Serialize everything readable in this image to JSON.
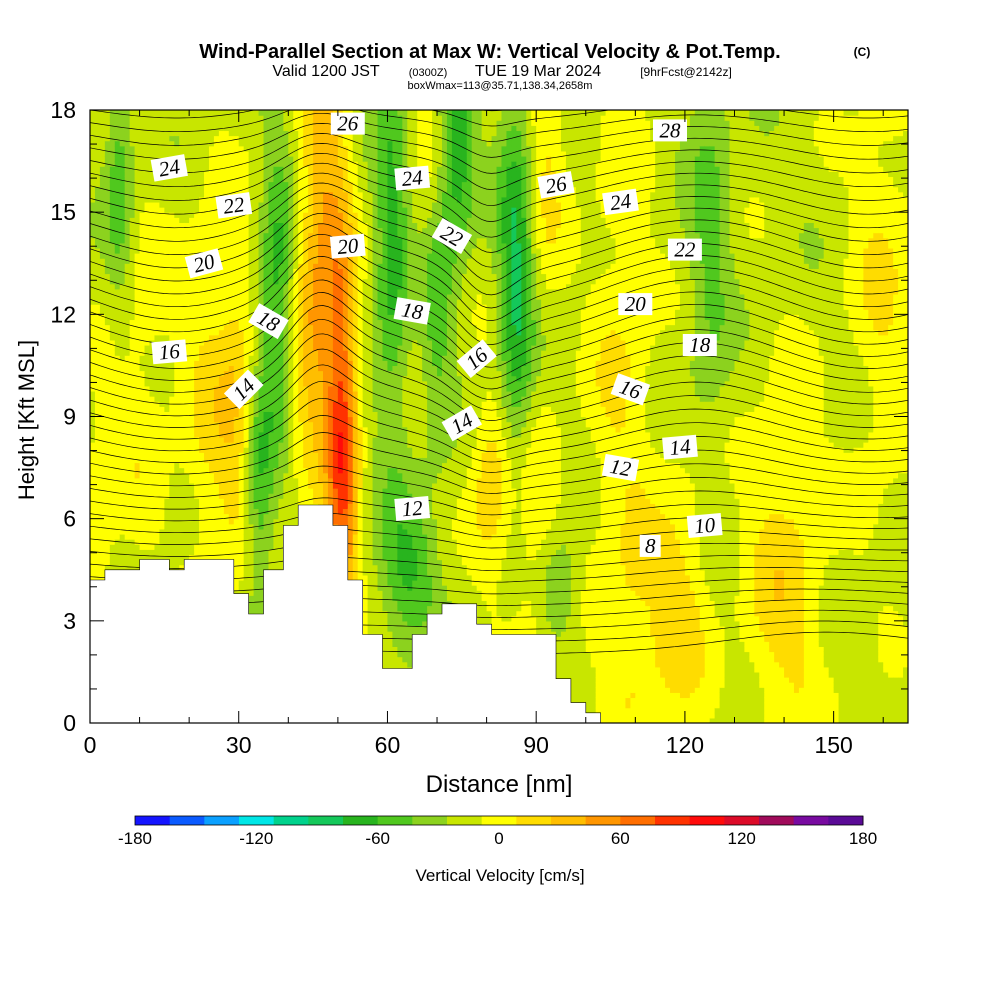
{
  "header": {
    "title": "Wind-Parallel Section at Max W: Vertical Velocity & Pot.Temp.",
    "title_tag": "(C)",
    "valid_prefix": "Valid 1200 JST",
    "valid_utc": "(0300Z)",
    "valid_date": "TUE 19 Mar 2024",
    "forecast_tag": "[9hrFcst@2142z]",
    "box_info": "boxWmax=113@35.71,138.34,2658m"
  },
  "chart_data": {
    "type": "heatmap",
    "title": "Wind-Parallel Section at Max W: Vertical Velocity & Pot.Temp.",
    "xlabel": "Distance [nm]",
    "ylabel": "Height [Kft MSL]",
    "xlim": [
      0,
      165
    ],
    "ylim": [
      0,
      18
    ],
    "x_ticks": [
      0,
      30,
      60,
      90,
      120,
      150
    ],
    "y_ticks": [
      0,
      3,
      6,
      9,
      12,
      15,
      18
    ],
    "x_tick_labels": [
      "0",
      "30",
      "60",
      "90",
      "120",
      "150"
    ],
    "y_tick_labels": [
      "0",
      "3",
      "6",
      "9",
      "12",
      "15",
      "18"
    ],
    "terrain_profile": [
      [
        0,
        4.2
      ],
      [
        3,
        4.2
      ],
      [
        3,
        4.5
      ],
      [
        10,
        4.5
      ],
      [
        10,
        4.8
      ],
      [
        16,
        4.8
      ],
      [
        16,
        4.5
      ],
      [
        19,
        4.5
      ],
      [
        19,
        4.8
      ],
      [
        29,
        4.8
      ],
      [
        29,
        3.8
      ],
      [
        32,
        3.8
      ],
      [
        32,
        3.2
      ],
      [
        35,
        3.2
      ],
      [
        35,
        4.5
      ],
      [
        39,
        4.5
      ],
      [
        39,
        5.8
      ],
      [
        42,
        5.8
      ],
      [
        42,
        6.4
      ],
      [
        49,
        6.4
      ],
      [
        49,
        5.8
      ],
      [
        52,
        5.8
      ],
      [
        52,
        4.2
      ],
      [
        55,
        4.2
      ],
      [
        55,
        2.6
      ],
      [
        59,
        2.6
      ],
      [
        59,
        1.6
      ],
      [
        65,
        1.6
      ],
      [
        65,
        2.6
      ],
      [
        68,
        2.6
      ],
      [
        68,
        3.2
      ],
      [
        71,
        3.2
      ],
      [
        71,
        3.5
      ],
      [
        78,
        3.5
      ],
      [
        78,
        2.9
      ],
      [
        81,
        2.9
      ],
      [
        81,
        2.6
      ],
      [
        94,
        2.6
      ],
      [
        94,
        1.3
      ],
      [
        97,
        1.3
      ],
      [
        97,
        0.6
      ],
      [
        100,
        0.6
      ],
      [
        100,
        0.3
      ],
      [
        103,
        0.3
      ],
      [
        103,
        0
      ],
      [
        165,
        0
      ]
    ],
    "velocity_colorbar": {
      "label": "Vertical Velocity [cm/s]",
      "min": -180,
      "max": 180,
      "tick_values": [
        -180,
        -120,
        -60,
        0,
        60,
        120,
        180
      ],
      "tick_labels": [
        "-180",
        "-120",
        "-60",
        "0",
        "60",
        "120",
        "180"
      ],
      "colors": [
        "#1414ff",
        "#0a5aff",
        "#0aa0ff",
        "#00e6e6",
        "#00d28c",
        "#14c85a",
        "#28b41e",
        "#50c81e",
        "#8cd21e",
        "#c8e600",
        "#ffff00",
        "#ffdc00",
        "#ffbe00",
        "#ff9600",
        "#ff6e00",
        "#ff3200",
        "#ff0a0a",
        "#dc0a28",
        "#a00a5a",
        "#780aa0",
        "#5a0a96"
      ]
    },
    "velocity_field": {
      "background_cm_s": -18,
      "updrafts": [
        {
          "x": 1,
          "y": 6.0,
          "w": 25,
          "sx": 2.5,
          "sy": 2.0
        },
        {
          "x": 10,
          "y": 10.0,
          "w": 20,
          "sx": 5,
          "sy": 4
        },
        {
          "x": 24,
          "y": 9.0,
          "w": 25,
          "sx": 4,
          "sy": 5
        },
        {
          "x": 30,
          "y": 9.5,
          "w": 35,
          "sx": 3,
          "sy": 3
        },
        {
          "x": 51,
          "y": 8.0,
          "w": 95,
          "sx": 2.2,
          "sy": 4.5
        },
        {
          "x": 47,
          "y": 14.5,
          "w": 55,
          "sx": 3,
          "sy": 5
        },
        {
          "x": 43,
          "y": 11.0,
          "w": 30,
          "sx": 3,
          "sy": 3
        },
        {
          "x": 70,
          "y": 16.0,
          "w": 25,
          "sx": 4,
          "sy": 4
        },
        {
          "x": 81,
          "y": 7.0,
          "w": 40,
          "sx": 3,
          "sy": 2
        },
        {
          "x": 90,
          "y": 5.0,
          "w": 30,
          "sx": 4,
          "sy": 3
        },
        {
          "x": 92,
          "y": 17.0,
          "w": 30,
          "sx": 3,
          "sy": 3
        },
        {
          "x": 107,
          "y": 10.0,
          "w": 25,
          "sx": 5,
          "sy": 6
        },
        {
          "x": 111,
          "y": 2.5,
          "w": 25,
          "sx": 5,
          "sy": 2
        },
        {
          "x": 120,
          "y": 3.5,
          "w": 28,
          "sx": 4,
          "sy": 3
        },
        {
          "x": 140,
          "y": 4.0,
          "w": 35,
          "sx": 6,
          "sy": 4
        },
        {
          "x": 160,
          "y": 13.0,
          "w": 25,
          "sx": 5,
          "sy": 5
        }
      ],
      "downdrafts": [
        {
          "x": 38,
          "y": 12.5,
          "w": -55,
          "sx": 2.5,
          "sy": 3
        },
        {
          "x": 34,
          "y": 7.0,
          "w": -45,
          "sx": 2,
          "sy": 2.5
        },
        {
          "x": 61,
          "y": 14.0,
          "w": -50,
          "sx": 2.5,
          "sy": 4
        },
        {
          "x": 74,
          "y": 17.0,
          "w": -65,
          "sx": 2.5,
          "sy": 2.5
        },
        {
          "x": 70,
          "y": 12.5,
          "w": -45,
          "sx": 2.5,
          "sy": 3
        },
        {
          "x": 86,
          "y": 13.0,
          "w": -65,
          "sx": 2.5,
          "sy": 4
        },
        {
          "x": 64,
          "y": 4.5,
          "w": -45,
          "sx": 4,
          "sy": 1.5
        },
        {
          "x": 94,
          "y": 4.0,
          "w": -45,
          "sx": 3,
          "sy": 1.2
        },
        {
          "x": 6,
          "y": 16.0,
          "w": -40,
          "sx": 2,
          "sy": 2.5
        },
        {
          "x": 125,
          "y": 14.0,
          "w": -30,
          "sx": 3,
          "sy": 4
        }
      ]
    },
    "potential_temperature": {
      "units": "C",
      "interval": 0.5,
      "labeled_levels": [
        8,
        10,
        12,
        14,
        16,
        18,
        20,
        22,
        24,
        26,
        28
      ],
      "labels": [
        {
          "text": "8",
          "x": 113,
          "y": 5.2,
          "angle": 0
        },
        {
          "text": "10",
          "x": 124,
          "y": 5.8,
          "angle": -5
        },
        {
          "text": "12",
          "x": 65,
          "y": 6.3,
          "angle": -5
        },
        {
          "text": "12",
          "x": 107,
          "y": 7.5,
          "angle": 10
        },
        {
          "text": "14",
          "x": 31,
          "y": 9.8,
          "angle": -45
        },
        {
          "text": "14",
          "x": 75,
          "y": 8.8,
          "angle": -30
        },
        {
          "text": "14",
          "x": 119,
          "y": 8.1,
          "angle": -5
        },
        {
          "text": "16",
          "x": 16,
          "y": 10.9,
          "angle": -5
        },
        {
          "text": "16",
          "x": 78,
          "y": 10.7,
          "angle": -40
        },
        {
          "text": "16",
          "x": 109,
          "y": 9.8,
          "angle": 20
        },
        {
          "text": "18",
          "x": 36,
          "y": 11.8,
          "angle": 30
        },
        {
          "text": "18",
          "x": 65,
          "y": 12.1,
          "angle": 10
        },
        {
          "text": "18",
          "x": 123,
          "y": 11.1,
          "angle": 0
        },
        {
          "text": "20",
          "x": 23,
          "y": 13.5,
          "angle": -15
        },
        {
          "text": "20",
          "x": 52,
          "y": 14.0,
          "angle": -5
        },
        {
          "text": "20",
          "x": 110,
          "y": 12.3,
          "angle": 0
        },
        {
          "text": "22",
          "x": 29,
          "y": 15.2,
          "angle": -8
        },
        {
          "text": "22",
          "x": 73,
          "y": 14.3,
          "angle": 30
        },
        {
          "text": "22",
          "x": 120,
          "y": 13.9,
          "angle": 0
        },
        {
          "text": "24",
          "x": 16,
          "y": 16.3,
          "angle": -10
        },
        {
          "text": "24",
          "x": 65,
          "y": 16.0,
          "angle": -5
        },
        {
          "text": "24",
          "x": 107,
          "y": 15.3,
          "angle": -8
        },
        {
          "text": "26",
          "x": 52,
          "y": 17.6,
          "angle": 0
        },
        {
          "text": "26",
          "x": 94,
          "y": 15.8,
          "angle": -10
        },
        {
          "text": "28",
          "x": 117,
          "y": 17.4,
          "angle": 0
        }
      ]
    },
    "grid": false,
    "legend": "colorbar-bottom"
  }
}
